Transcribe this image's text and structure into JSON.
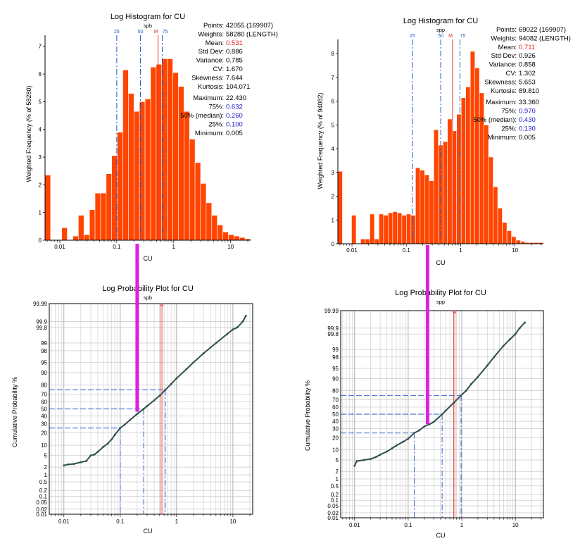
{
  "colors": {
    "bar": "#ff4500",
    "bar_edge": "#ffffff",
    "quartile_line": "#2255cc",
    "mean_line": "#e03030",
    "prob_points": "#2f4f4f",
    "highlight": "#e020e0",
    "grid": "#bfbfbf",
    "text": "#000000",
    "stat_blue": "#1a1acc",
    "stat_red": "#e02020"
  },
  "chart_data": [
    {
      "id": "hist-left",
      "type": "bar",
      "title": "Log Histogram for CU",
      "subtitle": "spb",
      "xlabel": "CU",
      "ylabel": "Weighted Frequency (% of 58280)",
      "xscale": "log",
      "xlim": [
        0.0055,
        22.43
      ],
      "ylim": [
        0,
        7.4
      ],
      "x_tick_labels": [
        "0.01",
        "0.1",
        "1",
        "10"
      ],
      "x_tick_values": [
        0.01,
        0.1,
        1,
        10
      ],
      "y_ticks": [
        0,
        1,
        2,
        3,
        4,
        5,
        6,
        7
      ],
      "values": [
        2.35,
        0.0,
        0.0,
        0.45,
        0.0,
        0.15,
        0.9,
        0.2,
        1.1,
        1.7,
        1.7,
        2.4,
        3.05,
        3.9,
        6.15,
        5.3,
        4.65,
        5.0,
        5.1,
        6.25,
        6.35,
        6.55,
        6.55,
        6.05,
        5.55,
        4.65,
        3.65,
        2.8,
        2.05,
        1.35,
        0.9,
        0.55,
        0.3,
        0.2,
        0.15,
        0.1,
        0.05
      ],
      "quartile_markers": [
        {
          "label": "25",
          "value": 0.1,
          "kind": "quartile"
        },
        {
          "label": "50",
          "value": 0.26,
          "kind": "quartile"
        },
        {
          "label": "M",
          "value": 0.531,
          "kind": "mean"
        },
        {
          "label": "75",
          "value": 0.632,
          "kind": "quartile"
        }
      ],
      "stats": [
        {
          "label": "Points:",
          "value": "42055 (169907)",
          "color": "black"
        },
        {
          "label": "Weights:",
          "value": "58280 (LENGTH)",
          "color": "black"
        },
        {
          "label": "Mean:",
          "value": "0.531",
          "color": "red"
        },
        {
          "label": "Std Dev:",
          "value": "0.886",
          "color": "black"
        },
        {
          "label": "Variance:",
          "value": "0.785",
          "color": "black"
        },
        {
          "label": "CV:",
          "value": "1.670",
          "color": "black"
        },
        {
          "label": "Skewness:",
          "value": "7.644",
          "color": "black"
        },
        {
          "label": "Kurtosis:",
          "value": "104.071",
          "color": "black"
        },
        {
          "label": "Maximum:",
          "value": "22.430",
          "color": "black"
        },
        {
          "label": "75%:",
          "value": "0.632",
          "color": "blue"
        },
        {
          "label": "50% (median):",
          "value": "0.260",
          "color": "blue"
        },
        {
          "label": "25%:",
          "value": "0.100",
          "color": "blue"
        },
        {
          "label": "Minimum:",
          "value": "0.005",
          "color": "black"
        }
      ]
    },
    {
      "id": "hist-right",
      "type": "bar",
      "title": "Log Histogram for CU",
      "subtitle": "spp",
      "xlabel": "CU",
      "ylabel": "Weighted Frequency (% of 94082)",
      "xscale": "log",
      "xlim": [
        0.0055,
        33.36
      ],
      "ylim": [
        0,
        8.6
      ],
      "x_tick_labels": [
        "0.01",
        "0.1",
        "1",
        "10"
      ],
      "x_tick_values": [
        0.01,
        0.1,
        1,
        10
      ],
      "y_ticks": [
        0,
        1,
        2,
        3,
        4,
        5,
        6,
        7,
        8
      ],
      "values": [
        3.05,
        0.0,
        0.0,
        1.2,
        0.0,
        0.2,
        0.2,
        1.25,
        0.2,
        1.25,
        1.2,
        1.3,
        1.35,
        1.3,
        1.2,
        1.25,
        1.2,
        3.2,
        3.1,
        2.9,
        2.65,
        4.8,
        4.15,
        4.3,
        5.25,
        4.75,
        5.45,
        6.15,
        6.6,
        8.1,
        7.4,
        6.35,
        5.0,
        3.65,
        2.4,
        1.5,
        0.9,
        0.55,
        0.3,
        0.15,
        0.1,
        0.05,
        0.05,
        0.05,
        0.05
      ],
      "quartile_markers": [
        {
          "label": "25",
          "value": 0.13,
          "kind": "quartile"
        },
        {
          "label": "50",
          "value": 0.43,
          "kind": "quartile"
        },
        {
          "label": "M",
          "value": 0.711,
          "kind": "mean"
        },
        {
          "label": "75",
          "value": 0.97,
          "kind": "quartile"
        }
      ],
      "stats": [
        {
          "label": "Points:",
          "value": "69022 (169907)",
          "color": "black"
        },
        {
          "label": "Weights:",
          "value": "94082 (LENGTH)",
          "color": "black"
        },
        {
          "label": "Mean:",
          "value": "0.711",
          "color": "red"
        },
        {
          "label": "Std Dev:",
          "value": "0.926",
          "color": "black"
        },
        {
          "label": "Variance:",
          "value": "0.858",
          "color": "black"
        },
        {
          "label": "CV:",
          "value": "1.302",
          "color": "black"
        },
        {
          "label": "Skewness:",
          "value": "5.653",
          "color": "black"
        },
        {
          "label": "Kurtosis:",
          "value": "89.810",
          "color": "black"
        },
        {
          "label": "Maximum:",
          "value": "33.360",
          "color": "black"
        },
        {
          "label": "75%:",
          "value": "0.970",
          "color": "blue"
        },
        {
          "label": "50% (median):",
          "value": "0.430",
          "color": "blue"
        },
        {
          "label": "25%:",
          "value": "0.130",
          "color": "blue"
        },
        {
          "label": "Minimum:",
          "value": "0.005",
          "color": "black"
        }
      ]
    },
    {
      "id": "prob-left",
      "type": "scatter",
      "title": "Log Probability Plot for CU",
      "subtitle": "spb",
      "xlabel": "CU",
      "ylabel": "Cumulative Probability %",
      "xscale": "log",
      "yscale": "probability",
      "xlim": [
        0.0055,
        22.43
      ],
      "y_tick_labels": [
        "0.01",
        "0.02",
        "0.05",
        "0.1",
        "0.2",
        "0.5",
        "1",
        "2",
        "5",
        "10",
        "20",
        "30",
        "40",
        "50",
        "60",
        "70",
        "80",
        "90",
        "95",
        "98",
        "99",
        "99.8",
        "99.9",
        "99.99"
      ],
      "y_tick_values": [
        0.01,
        0.02,
        0.05,
        0.1,
        0.2,
        0.5,
        1,
        2,
        5,
        10,
        20,
        30,
        40,
        50,
        60,
        70,
        80,
        90,
        95,
        98,
        99,
        99.8,
        99.9,
        99.99
      ],
      "x_tick_labels": [
        "0.01",
        "0.1",
        "1",
        "10"
      ],
      "x_tick_values": [
        0.01,
        0.1,
        1,
        10
      ],
      "mean_marker": {
        "label": "M",
        "value": 0.531
      },
      "quartile_guides": [
        {
          "x": 0.1,
          "p": 25
        },
        {
          "x": 0.26,
          "p": 50
        },
        {
          "x": 0.632,
          "p": 75
        }
      ],
      "curve": [
        [
          0.01,
          2.3
        ],
        [
          0.012,
          2.5
        ],
        [
          0.015,
          2.6
        ],
        [
          0.02,
          3.0
        ],
        [
          0.025,
          3.3
        ],
        [
          0.03,
          5.0
        ],
        [
          0.035,
          5.4
        ],
        [
          0.04,
          6.5
        ],
        [
          0.05,
          9.0
        ],
        [
          0.06,
          11
        ],
        [
          0.07,
          14
        ],
        [
          0.08,
          18
        ],
        [
          0.1,
          25
        ],
        [
          0.12,
          29
        ],
        [
          0.15,
          35
        ],
        [
          0.2,
          43
        ],
        [
          0.26,
          50
        ],
        [
          0.3,
          54
        ],
        [
          0.4,
          62
        ],
        [
          0.5,
          68
        ],
        [
          0.632,
          75
        ],
        [
          0.8,
          81
        ],
        [
          1.0,
          86
        ],
        [
          1.5,
          92
        ],
        [
          2,
          95
        ],
        [
          3,
          97.5
        ],
        [
          5,
          99
        ],
        [
          8,
          99.6
        ],
        [
          10,
          99.75
        ],
        [
          12,
          99.8
        ],
        [
          15,
          99.9
        ],
        [
          17,
          99.95
        ]
      ],
      "highlight_bar": {
        "x": 0.2,
        "p_from": 99.995,
        "p_to": 46
      }
    },
    {
      "id": "prob-right",
      "type": "scatter",
      "title": "Log Probability Plot for CU",
      "subtitle": "spp",
      "xlabel": "CU",
      "ylabel": "Cumulative Probability %",
      "xscale": "log",
      "yscale": "probability",
      "xlim": [
        0.0055,
        33.36
      ],
      "y_tick_labels": [
        "0.01",
        "0.02",
        "0.05",
        "0.1",
        "0.2",
        "0.5",
        "1",
        "2",
        "5",
        "10",
        "20",
        "30",
        "40",
        "50",
        "60",
        "70",
        "80",
        "90",
        "95",
        "98",
        "99",
        "99.8",
        "99.9",
        "99.99"
      ],
      "y_tick_values": [
        0.01,
        0.02,
        0.05,
        0.1,
        0.2,
        0.5,
        1,
        2,
        5,
        10,
        20,
        30,
        40,
        50,
        60,
        70,
        80,
        90,
        95,
        98,
        99,
        99.8,
        99.9,
        99.99
      ],
      "x_tick_labels": [
        "0.01",
        "0.1",
        "1",
        "10"
      ],
      "x_tick_values": [
        0.01,
        0.1,
        1,
        10
      ],
      "mean_marker": {
        "label": "M",
        "value": 0.711
      },
      "quartile_guides": [
        {
          "x": 0.13,
          "p": 25
        },
        {
          "x": 0.43,
          "p": 50
        },
        {
          "x": 0.97,
          "p": 75
        }
      ],
      "curve": [
        [
          0.01,
          3.2
        ],
        [
          0.011,
          4.6
        ],
        [
          0.015,
          5.0
        ],
        [
          0.02,
          5.4
        ],
        [
          0.025,
          6.2
        ],
        [
          0.03,
          7.3
        ],
        [
          0.04,
          9.0
        ],
        [
          0.05,
          11
        ],
        [
          0.06,
          13
        ],
        [
          0.08,
          16
        ],
        [
          0.1,
          19
        ],
        [
          0.13,
          25
        ],
        [
          0.16,
          28
        ],
        [
          0.2,
          33
        ],
        [
          0.25,
          36
        ],
        [
          0.3,
          39
        ],
        [
          0.43,
          50
        ],
        [
          0.5,
          55
        ],
        [
          0.711,
          66
        ],
        [
          0.97,
          75
        ],
        [
          1.2,
          80
        ],
        [
          1.5,
          86
        ],
        [
          2,
          91
        ],
        [
          3,
          96
        ],
        [
          4,
          98
        ],
        [
          6,
          99.3
        ],
        [
          8,
          99.65
        ],
        [
          10,
          99.8
        ],
        [
          12,
          99.9
        ],
        [
          15,
          99.95
        ]
      ],
      "highlight_bar": {
        "x": 0.23,
        "p_from": 99.995,
        "p_to": 36
      }
    }
  ]
}
